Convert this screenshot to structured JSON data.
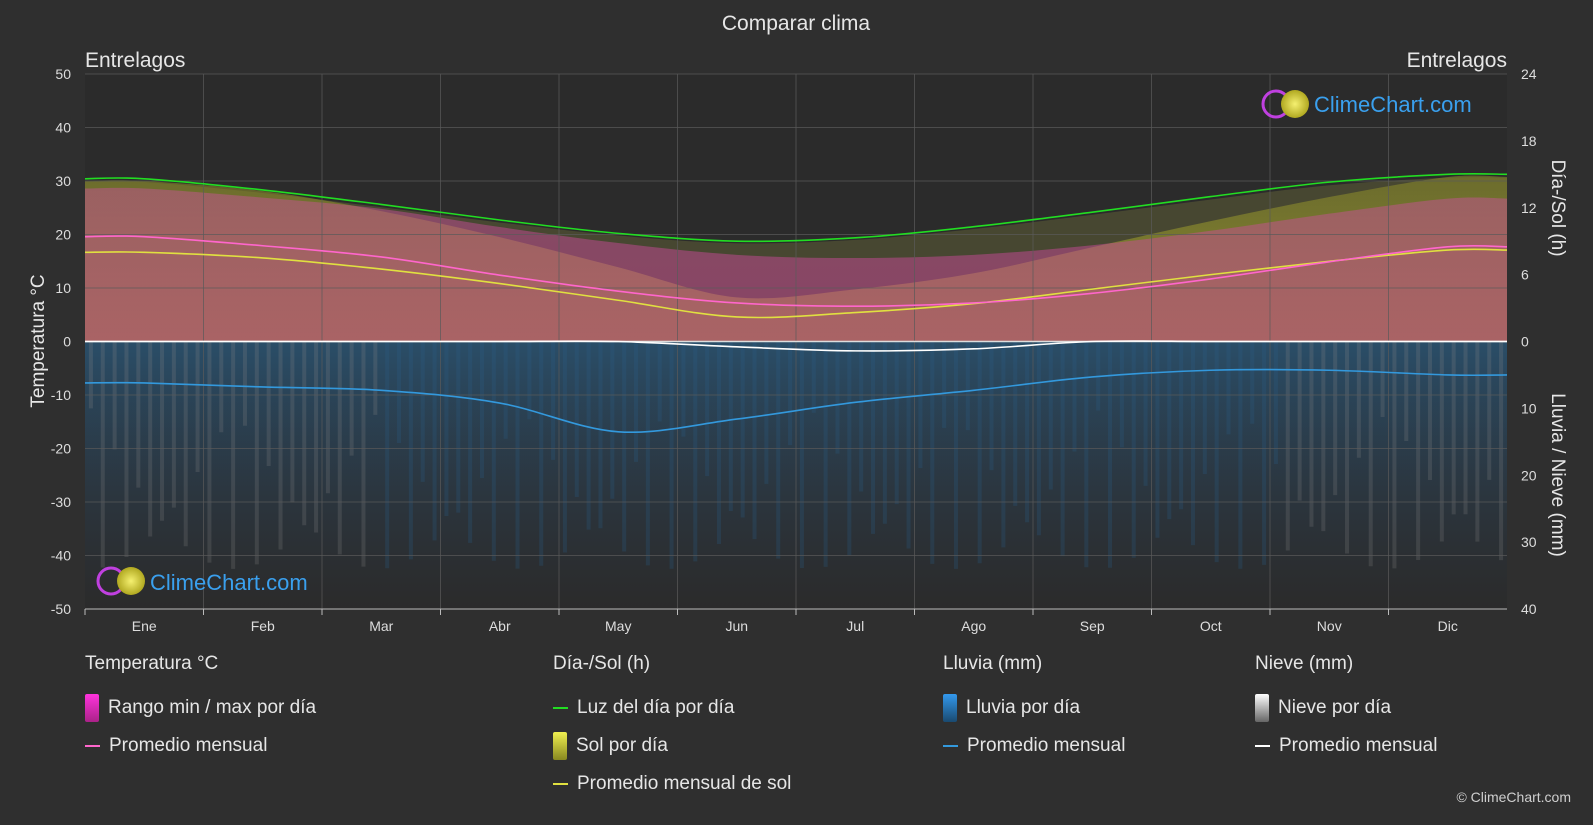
{
  "chart_data": {
    "type": "line",
    "title": "Comparar clima",
    "location_left": "Entrelagos",
    "location_right": "Entrelagos",
    "brand": "ClimeChart.com",
    "copyright": "© ClimeChart.com",
    "categories": [
      "Ene",
      "Feb",
      "Mar",
      "Abr",
      "May",
      "Jun",
      "Jul",
      "Ago",
      "Sep",
      "Oct",
      "Nov",
      "Dic"
    ],
    "y_left": {
      "label": "Temperatura °C",
      "range": [
        -50,
        50
      ],
      "ticks": [
        50,
        40,
        30,
        20,
        10,
        0,
        -10,
        -20,
        -30,
        -40,
        -50
      ]
    },
    "y_right_top": {
      "label": "Día-/Sol (h)",
      "range": [
        0,
        24
      ],
      "ticks": [
        24,
        18,
        12,
        6,
        0
      ]
    },
    "y_right_bottom": {
      "label": "Lluvia / Nieve (mm)",
      "range": [
        0,
        40
      ],
      "ticks": [
        10,
        20,
        30,
        40
      ]
    },
    "grid": true,
    "series": [
      {
        "name": "Luz del día por día",
        "axis": "hours",
        "color": "#22dd22",
        "values": [
          14.6,
          13.6,
          12.3,
          10.9,
          9.7,
          9.0,
          9.3,
          10.3,
          11.6,
          13.0,
          14.3,
          15.0
        ]
      },
      {
        "name": "Promedio mensual de sol",
        "axis": "hours",
        "color": "#e0e040",
        "values": [
          8.0,
          7.5,
          6.5,
          5.2,
          3.7,
          2.2,
          2.6,
          3.4,
          4.7,
          6.0,
          7.2,
          8.2
        ]
      },
      {
        "name": "Promedio mensual",
        "group": "temperature",
        "axis": "temp",
        "color": "#ff66cc",
        "values": [
          19.6,
          17.9,
          15.8,
          12.4,
          9.4,
          7.2,
          6.6,
          7.2,
          9.0,
          11.7,
          14.9,
          17.7
        ]
      },
      {
        "name": "Promedio mensual",
        "group": "rain",
        "axis": "mm",
        "color": "#3399dd",
        "values": [
          6.2,
          6.8,
          7.3,
          9.2,
          13.5,
          11.6,
          9.1,
          7.3,
          5.3,
          4.3,
          4.3,
          5.0
        ]
      },
      {
        "name": "Promedio mensual",
        "group": "snow",
        "axis": "mm",
        "color": "#ffffff",
        "values": [
          0.0,
          0.0,
          0.0,
          0.0,
          0.0,
          0.8,
          1.4,
          1.1,
          0.0,
          0.0,
          0.0,
          0.0
        ]
      }
    ]
  },
  "legend": {
    "temp": {
      "title": "Temperatura °C",
      "range": "Rango min / max por día",
      "avg": "Promedio mensual"
    },
    "sun": {
      "title": "Día-/Sol (h)",
      "daylight": "Luz del día por día",
      "sun": "Sol por día",
      "avg": "Promedio mensual de sol"
    },
    "rain": {
      "title": "Lluvia (mm)",
      "daily": "Lluvia por día",
      "avg": "Promedio mensual"
    },
    "snow": {
      "title": "Nieve (mm)",
      "daily": "Nieve por día",
      "avg": "Promedio mensual"
    }
  }
}
